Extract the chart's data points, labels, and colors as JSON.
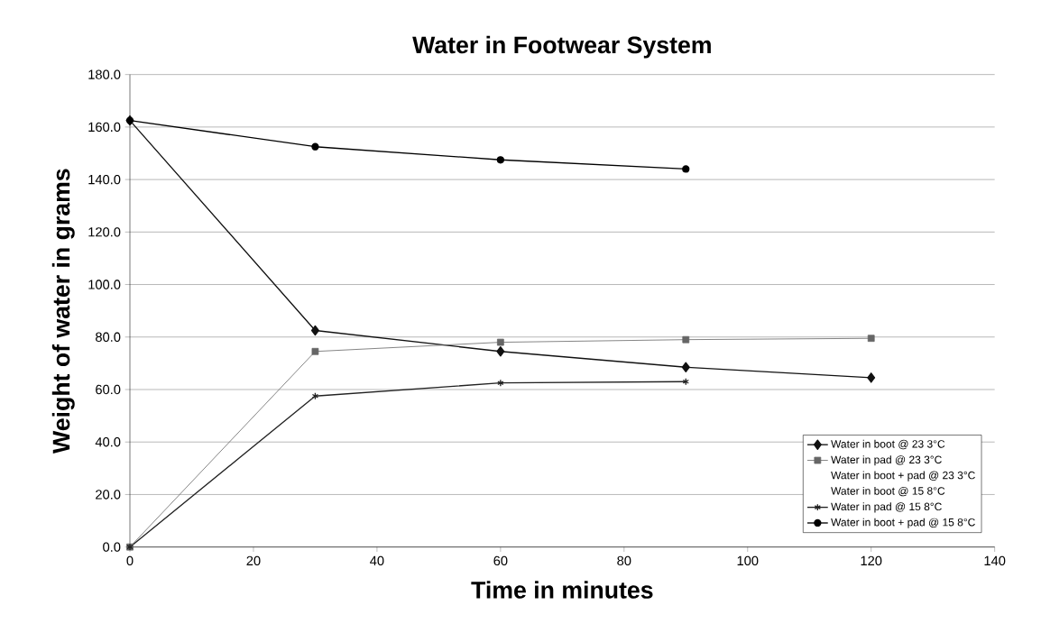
{
  "chart_data": {
    "type": "line",
    "title": "Water in Footwear System",
    "xlabel": "Time in minutes",
    "ylabel": "Weight of water in grams",
    "x": [
      0,
      30,
      60,
      90,
      120
    ],
    "series": [
      {
        "name": "Water in boot @ 23 3°C",
        "color": "#111111",
        "marker": "diamond",
        "values": [
          162.5,
          82.5,
          74.5,
          68.5,
          64.5
        ]
      },
      {
        "name": "Water in pad @ 23 3°C",
        "color": "#666666",
        "marker": "square",
        "values": [
          0,
          74.5,
          78,
          79,
          79.5
        ]
      },
      {
        "name": "Water in boot + pad @ 23 3°C",
        "values": [
          null,
          null,
          null,
          null,
          null
        ]
      },
      {
        "name": "Water in boot @ 15 8°C",
        "values": [
          null,
          null,
          null,
          null,
          null
        ]
      },
      {
        "name": "Water in pad @ 15 8°C",
        "color": "#222222",
        "marker": "cross",
        "values": [
          0,
          57.5,
          62.5,
          63,
          null
        ]
      },
      {
        "name": "Water in boot + pad @ 15 8°C",
        "color": "#000000",
        "marker": "circle",
        "values": [
          162.5,
          152.5,
          147.5,
          144,
          null
        ]
      }
    ],
    "xlim": [
      0,
      140
    ],
    "xticks": [
      0,
      20,
      40,
      60,
      80,
      100,
      120,
      140
    ],
    "ylim": [
      0,
      180
    ],
    "yticks": [
      {
        "value": 0,
        "label": "0.0"
      },
      {
        "value": 20,
        "label": "20.0"
      },
      {
        "value": 40,
        "label": "40.0"
      },
      {
        "value": 60,
        "label": "60.0"
      },
      {
        "value": 80,
        "label": "80.0"
      },
      {
        "value": 100,
        "label": "100.0"
      },
      {
        "value": 120,
        "label": "120.0"
      },
      {
        "value": 140,
        "label": "140.0"
      },
      {
        "value": 160,
        "label": "160.0"
      },
      {
        "value": 180,
        "label": "180.0"
      }
    ],
    "grid": "y",
    "legend": "bottom right",
    "line_style": "solid"
  }
}
